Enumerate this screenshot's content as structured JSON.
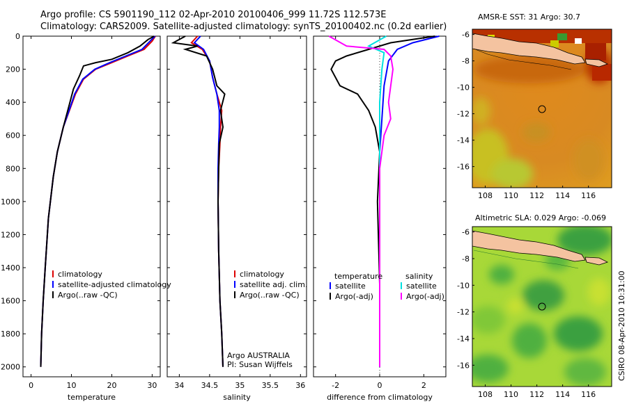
{
  "header": {
    "title_line1": "Argo profile: CS 5901190_112 02-Apr-2010 20100406_999 11.72S 112.573E",
    "title_line2": "Climatology: CARS2009. Satellite-adjusted climatology: synTS_20100402.nc (0.2d earlier)"
  },
  "side_label": "CSIRO 08-Apr-2010 10:31:00",
  "colors": {
    "climatology": "#dd0000",
    "satellite": "#0000ff",
    "argo": "#000000",
    "sat_diff_sal": "#00e0e0",
    "argo_diff_sal": "#ff00ff",
    "land": "#f4c3a0"
  },
  "chart_data": [
    {
      "type": "line",
      "id": "temperature",
      "xlabel": "temperature",
      "ylabel": "",
      "xlim": [
        -2,
        32
      ],
      "ylim": [
        2060,
        0
      ],
      "xticks": [
        "0",
        "10",
        "20",
        "30"
      ],
      "yticks": [
        "0",
        "200",
        "400",
        "600",
        "800",
        "1000",
        "1200",
        "1400",
        "1600",
        "1800",
        "2000"
      ],
      "series": [
        {
          "name": "climatology",
          "color": "#dd0000",
          "x": [
            30.8,
            30,
            28,
            24,
            20,
            16,
            13,
            11,
            9.5,
            8,
            6.5,
            5.5,
            4.3,
            3.5,
            3,
            2.6,
            2.4
          ],
          "y": [
            0,
            30,
            80,
            120,
            160,
            200,
            260,
            350,
            450,
            550,
            700,
            850,
            1100,
            1400,
            1600,
            1800,
            2000
          ]
        },
        {
          "name": "satellite-adjusted climatology",
          "color": "#0000ff",
          "x": [
            30.7,
            29.5,
            27.5,
            23.5,
            19.5,
            15.8,
            12.8,
            10.8,
            9.4,
            8,
            6.5,
            5.5,
            4.3,
            3.5,
            3,
            2.6,
            2.4
          ],
          "y": [
            0,
            30,
            80,
            120,
            160,
            200,
            260,
            350,
            450,
            550,
            700,
            850,
            1100,
            1400,
            1600,
            1800,
            2000
          ]
        },
        {
          "name": "Argo(..raw -QC)",
          "color": "#000000",
          "x": [
            30.5,
            29,
            27,
            24,
            20,
            16,
            13,
            12,
            10.5,
            9.3,
            8,
            6.5,
            5.5,
            4.3,
            3.5,
            3,
            2.6,
            2.4
          ],
          "y": [
            0,
            20,
            60,
            100,
            140,
            160,
            180,
            240,
            320,
            430,
            550,
            700,
            850,
            1100,
            1400,
            1600,
            1800,
            2000
          ]
        }
      ],
      "legend": [
        "climatology",
        "satellite-adjusted climatology",
        "Argo(..raw -QC)"
      ]
    },
    {
      "type": "line",
      "id": "salinity",
      "xlabel": "salinity",
      "ylabel": "",
      "xlim": [
        33.8,
        36.1
      ],
      "ylim": [
        2060,
        0
      ],
      "xticks": [
        "34",
        "34.5",
        "35",
        "35.5",
        "36"
      ],
      "series": [
        {
          "name": "climatology",
          "color": "#dd0000",
          "x": [
            34.3,
            34.2,
            34.38,
            34.5,
            34.55,
            34.62,
            34.7,
            34.68,
            34.67,
            34.65,
            34.64,
            34.65,
            34.67,
            34.7,
            34.72
          ],
          "y": [
            0,
            40,
            80,
            150,
            250,
            350,
            450,
            550,
            650,
            800,
            1000,
            1300,
            1600,
            1800,
            2000
          ]
        },
        {
          "name": "satellite adj. clim.",
          "color": "#0000ff",
          "x": [
            34.35,
            34.25,
            34.4,
            34.5,
            34.55,
            34.62,
            34.66,
            34.66,
            34.65,
            34.64,
            34.64,
            34.65,
            34.67,
            34.7,
            34.72
          ],
          "y": [
            0,
            40,
            80,
            150,
            250,
            350,
            450,
            550,
            650,
            800,
            1000,
            1300,
            1600,
            1800,
            2000
          ]
        },
        {
          "name": "Argo(..raw -QC)",
          "color": "#000000",
          "x": [
            34.1,
            33.9,
            34.3,
            34.1,
            34.45,
            34.55,
            34.62,
            34.75,
            34.68,
            34.72,
            34.66,
            34.65,
            34.64,
            34.65,
            34.67,
            34.7,
            34.72
          ],
          "y": [
            0,
            40,
            60,
            80,
            120,
            200,
            300,
            350,
            450,
            550,
            650,
            800,
            1000,
            1300,
            1600,
            1800,
            2000
          ]
        }
      ],
      "legend": [
        "climatology",
        "satellite adj. clim.",
        "Argo(..raw -QC)"
      ],
      "annotations": [
        "Argo AUSTRALIA",
        "PI: Susan Wijffels"
      ]
    },
    {
      "type": "line",
      "id": "difference",
      "xlabel": "difference from climatology",
      "ylabel": "",
      "xlim": [
        -3,
        3
      ],
      "ylim": [
        2060,
        0
      ],
      "xticks": [
        "-2",
        "0",
        "2"
      ],
      "series": [
        {
          "name": "temperature satellite",
          "color": "#0000ff",
          "x": [
            2.7,
            1.5,
            0.8,
            0.4,
            0.2,
            0.1,
            0,
            0,
            0,
            0
          ],
          "y": [
            0,
            40,
            80,
            150,
            300,
            500,
            700,
            1000,
            1500,
            2000
          ]
        },
        {
          "name": "temperature Argo(-adj)",
          "color": "#000000",
          "x": [
            2.5,
            0.5,
            -0.5,
            -1.5,
            -2.0,
            -2.2,
            -1.8,
            -1.0,
            -0.5,
            -0.2,
            0,
            -0.1,
            0,
            0
          ],
          "y": [
            0,
            40,
            80,
            120,
            150,
            200,
            300,
            350,
            450,
            550,
            700,
            1000,
            1500,
            2000
          ]
        },
        {
          "name": "salinity satellite",
          "color": "#00e0e0",
          "x": [
            0.3,
            -0.5,
            0.2,
            0.1,
            0,
            0,
            0,
            0,
            0
          ],
          "y": [
            0,
            60,
            100,
            200,
            400,
            700,
            1000,
            1500,
            2000
          ]
        },
        {
          "name": "salinity Argo(-adj)",
          "color": "#ff00ff",
          "x": [
            -2.3,
            -1.5,
            0.2,
            0.5,
            0.6,
            0.4,
            0.5,
            0.2,
            0,
            0
          ],
          "y": [
            0,
            60,
            80,
            120,
            200,
            400,
            500,
            600,
            800,
            2000
          ]
        }
      ],
      "legend_headers": [
        "temperature",
        "salinity"
      ],
      "legend": [
        "satellite",
        "Argo(-adj)",
        "satellite",
        "Argo(-adj)"
      ]
    },
    {
      "type": "heatmap",
      "id": "sst-map",
      "title": "AMSR-E SST: 31 Argo: 30.7",
      "xticks": [
        "108",
        "110",
        "112",
        "114",
        "116"
      ],
      "yticks": [
        "-6",
        "-8",
        "-10",
        "-12",
        "-14",
        "-16"
      ],
      "marker": {
        "lon": 112.573,
        "lat": -11.72
      }
    },
    {
      "type": "heatmap",
      "id": "sla-map",
      "title": "Altimetric SLA: 0.029 Argo: -0.069",
      "xticks": [
        "108",
        "110",
        "112",
        "114",
        "116"
      ],
      "yticks": [
        "-6",
        "-8",
        "-10",
        "-12",
        "-14",
        "-16"
      ],
      "marker": {
        "lon": 112.573,
        "lat": -11.72
      }
    }
  ]
}
